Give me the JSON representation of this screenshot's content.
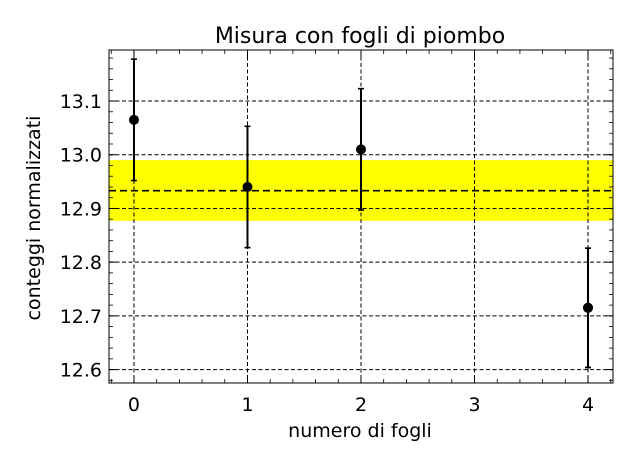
{
  "chart_data": {
    "type": "scatter",
    "title": "Misura con fogli di piombo",
    "xlabel": "numero di fogli",
    "ylabel": "conteggi normalizzati",
    "xlim": [
      -0.22,
      4.22
    ],
    "ylim": [
      12.575,
      13.195
    ],
    "x_ticks": [
      0,
      1,
      2,
      3,
      4
    ],
    "x_tick_labels": [
      "0",
      "1",
      "2",
      "3",
      "4"
    ],
    "y_ticks": [
      12.6,
      12.7,
      12.8,
      12.9,
      13.0,
      13.1
    ],
    "y_tick_labels": [
      "12.6",
      "12.7",
      "12.8",
      "12.9",
      "13.0",
      "13.1"
    ],
    "grid": true,
    "grid_style": "dashed",
    "minor_ticks": true,
    "series": [
      {
        "kind": "errorbar",
        "color": "#000000",
        "x": [
          0,
          1,
          2,
          3.9995,
          4
        ],
        "y": [
          13.065,
          12.94,
          13.01,
          12.715,
          12.715
        ],
        "yerr": [
          0.113,
          0.113,
          0.113,
          0.111,
          0.111
        ]
      }
    ],
    "mean_line": {
      "value": 12.933,
      "color": "#000000",
      "style": "dashed"
    },
    "uncertainty_band": {
      "low": 12.877,
      "high": 12.99,
      "color": "#ffff00"
    }
  }
}
